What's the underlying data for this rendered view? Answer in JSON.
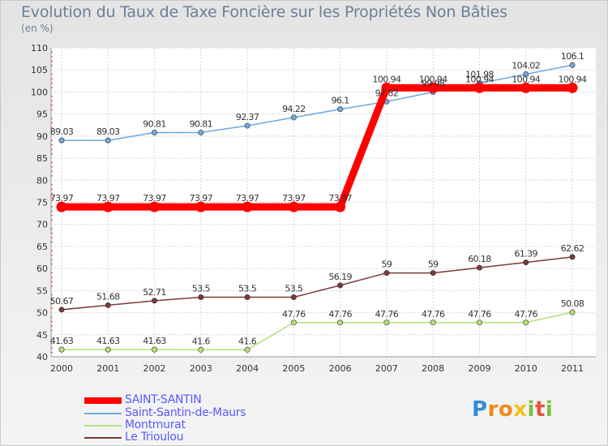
{
  "title": "Evolution du Taux de Taxe Foncière sur les Propriétés Non Bâties",
  "unit_label": "(en %)",
  "chart_data": {
    "type": "line",
    "title": "Evolution du Taux de Taxe Foncière sur les Propriétés Non Bâties",
    "ylabel": "(en %)",
    "xlabel": "",
    "x": [
      "2000",
      "2001",
      "2002",
      "2003",
      "2004",
      "2005",
      "2006",
      "2007",
      "2008",
      "2009",
      "2010",
      "2011"
    ],
    "ylim": [
      40,
      110
    ],
    "yticks": [
      "40",
      "45",
      "50",
      "55",
      "60",
      "65",
      "70",
      "75",
      "80",
      "85",
      "90",
      "95",
      "100",
      "105",
      "110"
    ],
    "grid": true,
    "legend_position": "bottom-left",
    "series": [
      {
        "name": "SAINT-SANTIN",
        "color": "#ff0000",
        "values": [
          73.97,
          73.97,
          73.97,
          73.97,
          73.97,
          73.97,
          73.97,
          100.94,
          100.94,
          100.94,
          100.94,
          100.94
        ],
        "labels": [
          "73.97",
          "73.97",
          "73.97",
          "73.97",
          "73.97",
          "73.97",
          "73.97",
          "100.94",
          "100.94",
          "100.94",
          "100.94",
          "100.94"
        ]
      },
      {
        "name": "Saint-Santin-de-Maurs",
        "color": "#6fa8dc",
        "values": [
          89.03,
          89.03,
          90.81,
          90.81,
          92.37,
          94.22,
          96.1,
          97.82,
          99.98,
          101.98,
          104.02,
          106.1
        ],
        "labels": [
          "89.03",
          "89.03",
          "90.81",
          "90.81",
          "92.37",
          "94.22",
          "96.1",
          "97.82",
          "99.98",
          "101.98",
          "104.02",
          "106.1"
        ]
      },
      {
        "name": "Montmurat",
        "color": "#b4e07a",
        "values": [
          41.63,
          41.63,
          41.63,
          41.6,
          41.6,
          47.76,
          47.76,
          47.76,
          47.76,
          47.76,
          47.76,
          50.08
        ],
        "labels": [
          "41.63",
          "41.63",
          "41.63",
          "41.6",
          "41.6",
          "47.76",
          "47.76",
          "47.76",
          "47.76",
          "47.76",
          "47.76",
          "50.08"
        ]
      },
      {
        "name": "Le Trioulou",
        "color": "#7a3a3a",
        "values": [
          50.67,
          51.68,
          52.71,
          53.5,
          53.5,
          53.5,
          56.19,
          59,
          59,
          60.18,
          61.39,
          62.62
        ],
        "labels": [
          "50.67",
          "51.68",
          "52.71",
          "53.5",
          "53.5",
          "53.5",
          "56.19",
          "59",
          "59",
          "60.18",
          "61.39",
          "62.62"
        ]
      }
    ]
  },
  "logo": {
    "letters": [
      "P",
      "r",
      "o",
      "x",
      "i",
      "t",
      "i"
    ],
    "colors": [
      "#2f8fd6",
      "#f08a1c",
      "#f08a1c",
      "#f3c21a",
      "#7ac043",
      "#e8523c",
      "#7ac043"
    ]
  }
}
